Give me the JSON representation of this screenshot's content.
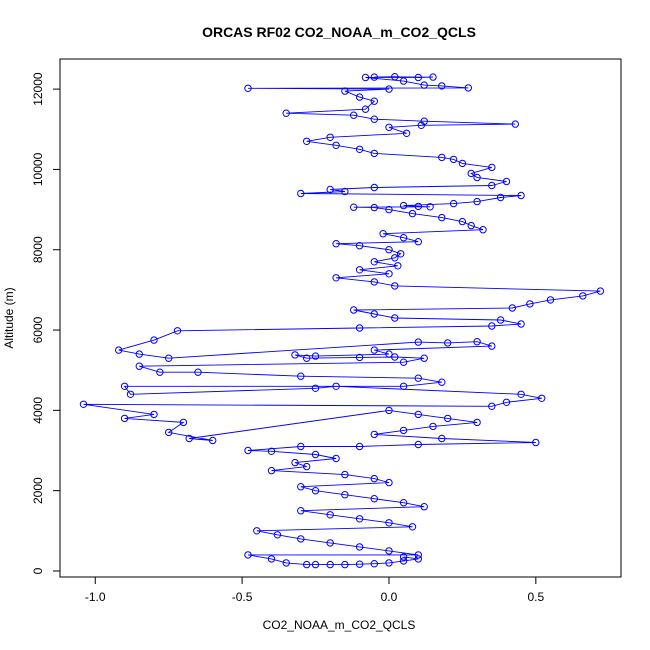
{
  "chart_data": {
    "type": "scatter",
    "title": "ORCAS RF02 CO2_NOAA_m_CO2_QCLS",
    "xlabel": "CO2_NOAA_m_CO2_QCLS",
    "ylabel": "Altitude (m)",
    "xlim": [
      -1.12,
      0.79
    ],
    "ylim": [
      -150,
      12750
    ],
    "xticks": [
      -1.0,
      -0.5,
      0.0,
      0.5
    ],
    "xtick_labels": [
      "-1.0",
      "-0.5",
      "0.0",
      "0.5"
    ],
    "yticks": [
      0,
      2000,
      4000,
      6000,
      8000,
      10000,
      12000
    ],
    "ytick_labels": [
      "0",
      "2000",
      "4000",
      "6000",
      "8000",
      "10000",
      "12000"
    ],
    "grid": false,
    "legend": "none",
    "series": [
      {
        "marker": "open-circle",
        "connected": true,
        "color": "#0000ff",
        "points": [
          [
            -0.05,
            12300
          ],
          [
            0.02,
            12310
          ],
          [
            0.1,
            12290
          ],
          [
            0.15,
            12300
          ],
          [
            -0.08,
            12290
          ],
          [
            0.05,
            12200
          ],
          [
            0.12,
            12100
          ],
          [
            0.18,
            12080
          ],
          [
            0.27,
            12030
          ],
          [
            -0.48,
            12020
          ],
          [
            0.0,
            12000
          ],
          [
            -0.15,
            11950
          ],
          [
            -0.1,
            11800
          ],
          [
            -0.05,
            11700
          ],
          [
            -0.08,
            11500
          ],
          [
            -0.35,
            11400
          ],
          [
            -0.12,
            11350
          ],
          [
            -0.05,
            11250
          ],
          [
            0.12,
            11200
          ],
          [
            0.43,
            11130
          ],
          [
            0.11,
            11100
          ],
          [
            0.0,
            11050
          ],
          [
            0.06,
            10900
          ],
          [
            -0.2,
            10800
          ],
          [
            -0.28,
            10700
          ],
          [
            -0.18,
            10600
          ],
          [
            -0.1,
            10500
          ],
          [
            -0.05,
            10400
          ],
          [
            0.18,
            10300
          ],
          [
            0.22,
            10250
          ],
          [
            0.25,
            10150
          ],
          [
            0.35,
            10050
          ],
          [
            0.28,
            9900
          ],
          [
            0.3,
            9800
          ],
          [
            0.4,
            9700
          ],
          [
            0.35,
            9600
          ],
          [
            -0.05,
            9550
          ],
          [
            -0.2,
            9500
          ],
          [
            -0.15,
            9450
          ],
          [
            -0.3,
            9400
          ],
          [
            0.45,
            9350
          ],
          [
            0.38,
            9300
          ],
          [
            0.3,
            9200
          ],
          [
            0.22,
            9150
          ],
          [
            0.05,
            9100
          ],
          [
            0.1,
            9080
          ],
          [
            0.14,
            9070
          ],
          [
            -0.12,
            9060
          ],
          [
            -0.05,
            9050
          ],
          [
            0.0,
            9000
          ],
          [
            0.08,
            8900
          ],
          [
            0.18,
            8800
          ],
          [
            0.25,
            8700
          ],
          [
            0.28,
            8600
          ],
          [
            0.32,
            8500
          ],
          [
            -0.02,
            8400
          ],
          [
            0.05,
            8300
          ],
          [
            0.1,
            8200
          ],
          [
            -0.18,
            8150
          ],
          [
            -0.1,
            8100
          ],
          [
            0.0,
            8000
          ],
          [
            0.04,
            7900
          ],
          [
            0.02,
            7800
          ],
          [
            -0.05,
            7700
          ],
          [
            0.03,
            7600
          ],
          [
            -0.1,
            7500
          ],
          [
            0.0,
            7400
          ],
          [
            -0.18,
            7300
          ],
          [
            -0.05,
            7200
          ],
          [
            0.02,
            7100
          ],
          [
            0.72,
            6970
          ],
          [
            0.66,
            6850
          ],
          [
            0.55,
            6750
          ],
          [
            0.48,
            6650
          ],
          [
            0.42,
            6550
          ],
          [
            -0.12,
            6500
          ],
          [
            -0.05,
            6400
          ],
          [
            0.02,
            6300
          ],
          [
            0.38,
            6250
          ],
          [
            0.45,
            6150
          ],
          [
            0.35,
            6100
          ],
          [
            -0.1,
            6050
          ],
          [
            -0.72,
            5980
          ],
          [
            -0.8,
            5750
          ],
          [
            -0.92,
            5500
          ],
          [
            -0.85,
            5400
          ],
          [
            -0.75,
            5300
          ],
          [
            0.1,
            5700
          ],
          [
            0.2,
            5680
          ],
          [
            0.3,
            5710
          ],
          [
            0.35,
            5600
          ],
          [
            -0.05,
            5500
          ],
          [
            0.0,
            5400
          ],
          [
            -0.25,
            5350
          ],
          [
            -0.32,
            5380
          ],
          [
            -0.28,
            5300
          ],
          [
            -0.1,
            5320
          ],
          [
            0.02,
            5330
          ],
          [
            0.12,
            5300
          ],
          [
            0.05,
            5200
          ],
          [
            -0.85,
            5100
          ],
          [
            -0.78,
            4950
          ],
          [
            -0.65,
            4950
          ],
          [
            -0.3,
            4850
          ],
          [
            0.1,
            4800
          ],
          [
            0.18,
            4700
          ],
          [
            0.05,
            4600
          ],
          [
            -0.9,
            4600
          ],
          [
            -0.88,
            4400
          ],
          [
            -0.25,
            4550
          ],
          [
            -0.18,
            4600
          ],
          [
            0.45,
            4400
          ],
          [
            0.52,
            4300
          ],
          [
            0.4,
            4200
          ],
          [
            0.35,
            4100
          ],
          [
            -1.04,
            4150
          ],
          [
            -0.8,
            3900
          ],
          [
            -0.9,
            3800
          ],
          [
            -0.7,
            3700
          ],
          [
            -0.75,
            3450
          ],
          [
            -0.6,
            3250
          ],
          [
            -0.68,
            3300
          ],
          [
            0.0,
            4000
          ],
          [
            0.1,
            3900
          ],
          [
            0.2,
            3800
          ],
          [
            0.3,
            3700
          ],
          [
            0.15,
            3600
          ],
          [
            0.05,
            3500
          ],
          [
            -0.05,
            3400
          ],
          [
            0.18,
            3300
          ],
          [
            0.5,
            3200
          ],
          [
            0.1,
            3150
          ],
          [
            -0.1,
            3100
          ],
          [
            -0.3,
            3100
          ],
          [
            -0.48,
            3000
          ],
          [
            -0.4,
            2980
          ],
          [
            -0.25,
            2900
          ],
          [
            -0.18,
            2800
          ],
          [
            -0.32,
            2700
          ],
          [
            -0.28,
            2600
          ],
          [
            -0.4,
            2500
          ],
          [
            -0.15,
            2400
          ],
          [
            -0.05,
            2300
          ],
          [
            0.0,
            2200
          ],
          [
            -0.3,
            2100
          ],
          [
            -0.25,
            2000
          ],
          [
            -0.15,
            1900
          ],
          [
            -0.05,
            1800
          ],
          [
            0.05,
            1700
          ],
          [
            0.12,
            1600
          ],
          [
            -0.3,
            1500
          ],
          [
            -0.2,
            1400
          ],
          [
            -0.1,
            1300
          ],
          [
            0.0,
            1200
          ],
          [
            0.08,
            1100
          ],
          [
            -0.45,
            1000
          ],
          [
            -0.38,
            900
          ],
          [
            -0.3,
            800
          ],
          [
            -0.2,
            700
          ],
          [
            -0.1,
            600
          ],
          [
            0.0,
            500
          ],
          [
            0.1,
            400
          ],
          [
            -0.48,
            400
          ],
          [
            -0.4,
            300
          ],
          [
            -0.35,
            200
          ],
          [
            -0.28,
            160
          ],
          [
            -0.25,
            160
          ],
          [
            -0.2,
            160
          ],
          [
            -0.15,
            160
          ],
          [
            -0.1,
            170
          ],
          [
            -0.05,
            180
          ],
          [
            0.0,
            200
          ],
          [
            0.05,
            250
          ],
          [
            0.1,
            300
          ],
          [
            0.05,
            350
          ]
        ]
      }
    ]
  }
}
